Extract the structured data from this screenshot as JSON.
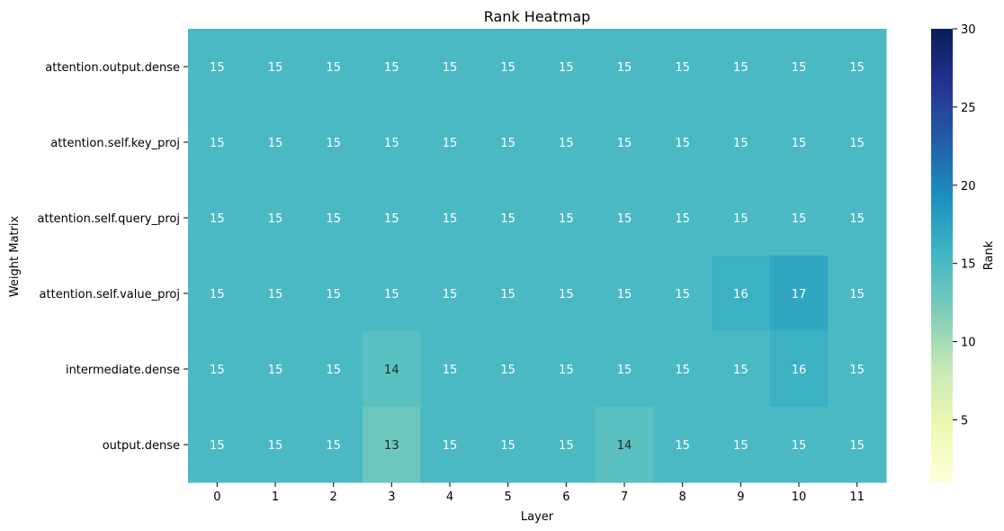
{
  "chart_data": {
    "type": "heatmap",
    "title": "Rank Heatmap",
    "xlabel": "Layer",
    "ylabel": "Weight Matrix",
    "x_categories": [
      "0",
      "1",
      "2",
      "3",
      "4",
      "5",
      "6",
      "7",
      "8",
      "9",
      "10",
      "11"
    ],
    "y_categories": [
      "attention.output.dense",
      "attention.self.key_proj",
      "attention.self.query_proj",
      "attention.self.value_proj",
      "intermediate.dense",
      "output.dense"
    ],
    "values": [
      [
        15,
        15,
        15,
        15,
        15,
        15,
        15,
        15,
        15,
        15,
        15,
        15
      ],
      [
        15,
        15,
        15,
        15,
        15,
        15,
        15,
        15,
        15,
        15,
        15,
        15
      ],
      [
        15,
        15,
        15,
        15,
        15,
        15,
        15,
        15,
        15,
        15,
        15,
        15
      ],
      [
        15,
        15,
        15,
        15,
        15,
        15,
        15,
        15,
        15,
        16,
        17,
        15
      ],
      [
        15,
        15,
        15,
        14,
        15,
        15,
        15,
        15,
        15,
        15,
        16,
        15
      ],
      [
        15,
        15,
        15,
        13,
        15,
        15,
        15,
        14,
        15,
        15,
        15,
        15
      ]
    ],
    "colorbar": {
      "label": "Rank",
      "range": [
        1,
        30
      ],
      "ticks": [
        5,
        10,
        15,
        20,
        25,
        30
      ],
      "colormap": "YlGnBu"
    },
    "annotations": true,
    "grid": false
  }
}
